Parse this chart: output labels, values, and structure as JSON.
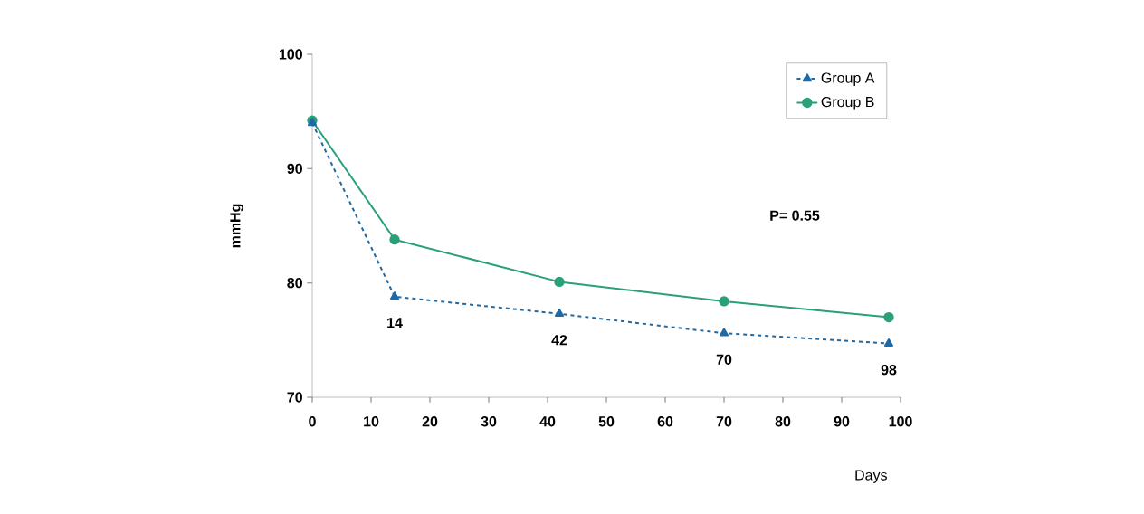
{
  "chart_data": {
    "type": "line",
    "xlabel": "Days",
    "ylabel": "mmHg",
    "x": [
      0,
      14,
      42,
      70,
      98
    ],
    "series": [
      {
        "name": "Group A",
        "color": "#1f6aa5",
        "values": [
          94.0,
          78.8,
          77.3,
          75.6,
          74.7
        ],
        "marker": "triangle",
        "line_style": "dashed"
      },
      {
        "name": "Group B",
        "color": "#2aa07a",
        "values": [
          94.2,
          83.8,
          80.1,
          78.4,
          77.0
        ],
        "marker": "circle",
        "line_style": "solid"
      }
    ],
    "xlim": [
      0,
      100
    ],
    "xticks": [
      0,
      10,
      20,
      30,
      40,
      50,
      60,
      70,
      80,
      90,
      100
    ],
    "ylim": [
      70,
      100
    ],
    "yticks": [
      70,
      80,
      90,
      100
    ],
    "grid": false,
    "legend": "top right",
    "annotations": [
      {
        "text": "14",
        "x": 14,
        "y": 78.8
      },
      {
        "text": "42",
        "x": 42,
        "y": 77.3
      },
      {
        "text": "70",
        "x": 70,
        "y": 75.6
      },
      {
        "text": "98",
        "x": 98,
        "y": 74.7
      },
      "P= 0.55"
    ]
  }
}
